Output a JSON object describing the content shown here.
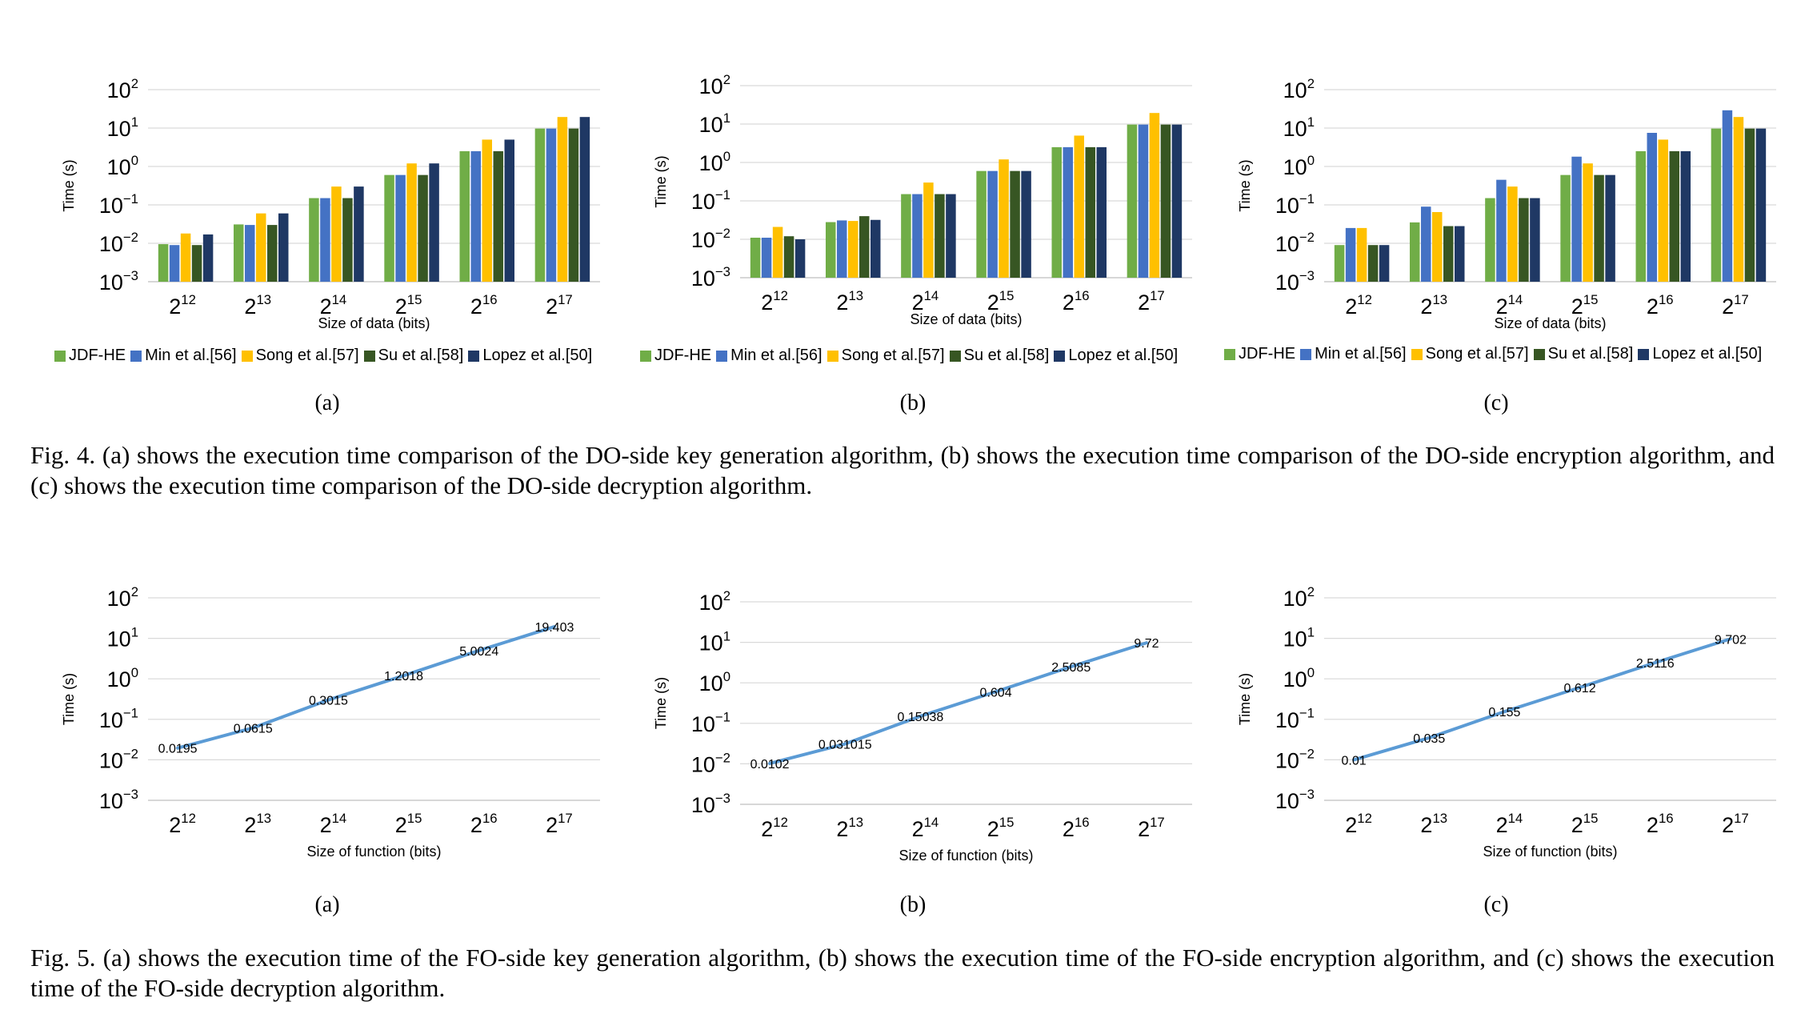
{
  "colors": {
    "JDF-HE": "#70ad47",
    "Min et al.[56]": "#4472c4",
    "Song et al.[57]": "#ffc000",
    "Su et al.[58]": "#375623",
    "Lopez et al.[50]": "#1f3864",
    "line": "#5b9bd5"
  },
  "fig4": {
    "caption": "Fig. 4.  (a) shows the execution time comparison of the DO-side key generation algorithm, (b) shows the execution time comparison of the DO-side encryption algorithm, and (c) shows the execution time comparison of the DO-side decryption algorithm.",
    "legend": [
      "JDF-HE",
      "Min et al.[56]",
      "Song et al.[57]",
      "Su et al.[58]",
      "Lopez et al.[50]"
    ]
  },
  "fig5": {
    "caption": "Fig. 5.  (a) shows the execution time of the FO-side key generation algorithm, (b) shows the execution time of the FO-side encryption algorithm, and (c) shows the execution time of the FO-side decryption algorithm."
  },
  "sublabels": [
    "(a)",
    "(b)",
    "(c)"
  ],
  "chart_data": [
    {
      "id": "fig4a",
      "type": "bar",
      "log_y": true,
      "ylim": [
        0.001,
        100
      ],
      "yticks": [
        0.001,
        0.01,
        0.1,
        1,
        10,
        100
      ],
      "ytick_labels": [
        [
          "10",
          "−3"
        ],
        [
          "10",
          "−2"
        ],
        [
          "10",
          "−1"
        ],
        [
          "10",
          "0"
        ],
        [
          "10",
          "1"
        ],
        [
          "10",
          "2"
        ]
      ],
      "categories": [
        [
          "2",
          "12"
        ],
        [
          "2",
          "13"
        ],
        [
          "2",
          "14"
        ],
        [
          "2",
          "15"
        ],
        [
          "2",
          "16"
        ],
        [
          "2",
          "17"
        ]
      ],
      "ylabel": "Time (s)",
      "xlabel": "Size of data (bits)",
      "grid": true,
      "series": [
        {
          "name": "JDF-HE",
          "values": [
            0.0095,
            0.031,
            0.15,
            0.6,
            2.5,
            9.7
          ]
        },
        {
          "name": "Min et al.[56]",
          "values": [
            0.009,
            0.03,
            0.15,
            0.6,
            2.5,
            9.7
          ]
        },
        {
          "name": "Song et al.[57]",
          "values": [
            0.018,
            0.06,
            0.3,
            1.2,
            5.0,
            19.4
          ]
        },
        {
          "name": "Su et al.[58]",
          "values": [
            0.009,
            0.03,
            0.15,
            0.6,
            2.5,
            9.7
          ]
        },
        {
          "name": "Lopez et al.[50]",
          "values": [
            0.017,
            0.06,
            0.3,
            1.2,
            5.0,
            19.4
          ]
        }
      ]
    },
    {
      "id": "fig4b",
      "type": "bar",
      "log_y": true,
      "ylim": [
        0.001,
        100
      ],
      "yticks": [
        0.001,
        0.01,
        0.1,
        1,
        10,
        100
      ],
      "ytick_labels": [
        [
          "10",
          "−3"
        ],
        [
          "10",
          "−2"
        ],
        [
          "10",
          "−1"
        ],
        [
          "10",
          "0"
        ],
        [
          "10",
          "1"
        ],
        [
          "10",
          "2"
        ]
      ],
      "categories": [
        [
          "2",
          "12"
        ],
        [
          "2",
          "13"
        ],
        [
          "2",
          "14"
        ],
        [
          "2",
          "15"
        ],
        [
          "2",
          "16"
        ],
        [
          "2",
          "17"
        ]
      ],
      "ylabel": "Time (s)",
      "xlabel": "Size of data (bits)",
      "grid": true,
      "series": [
        {
          "name": "JDF-HE",
          "values": [
            0.011,
            0.028,
            0.15,
            0.6,
            2.5,
            9.7
          ]
        },
        {
          "name": "Min et al.[56]",
          "values": [
            0.011,
            0.031,
            0.15,
            0.6,
            2.5,
            9.7
          ]
        },
        {
          "name": "Song et al.[57]",
          "values": [
            0.021,
            0.03,
            0.3,
            1.2,
            5.0,
            19.4
          ]
        },
        {
          "name": "Su et al.[58]",
          "values": [
            0.012,
            0.04,
            0.15,
            0.6,
            2.5,
            9.7
          ]
        },
        {
          "name": "Lopez et al.[50]",
          "values": [
            0.01,
            0.032,
            0.15,
            0.6,
            2.5,
            9.7
          ]
        }
      ]
    },
    {
      "id": "fig4c",
      "type": "bar",
      "log_y": true,
      "ylim": [
        0.001,
        100
      ],
      "yticks": [
        0.001,
        0.01,
        0.1,
        1,
        10,
        100
      ],
      "ytick_labels": [
        [
          "10",
          "−3"
        ],
        [
          "10",
          "−2"
        ],
        [
          "10",
          "−1"
        ],
        [
          "10",
          "0"
        ],
        [
          "10",
          "1"
        ],
        [
          "10",
          "2"
        ]
      ],
      "categories": [
        [
          "2",
          "12"
        ],
        [
          "2",
          "13"
        ],
        [
          "2",
          "14"
        ],
        [
          "2",
          "15"
        ],
        [
          "2",
          "16"
        ],
        [
          "2",
          "17"
        ]
      ],
      "ylabel": "Time (s)",
      "xlabel": "Size of data (bits)",
      "grid": true,
      "series": [
        {
          "name": "JDF-HE",
          "values": [
            0.009,
            0.035,
            0.15,
            0.6,
            2.5,
            9.7
          ]
        },
        {
          "name": "Min et al.[56]",
          "values": [
            0.025,
            0.09,
            0.45,
            1.8,
            7.5,
            29
          ]
        },
        {
          "name": "Song et al.[57]",
          "values": [
            0.025,
            0.065,
            0.3,
            1.2,
            5.0,
            19.4
          ]
        },
        {
          "name": "Su et al.[58]",
          "values": [
            0.009,
            0.028,
            0.15,
            0.6,
            2.5,
            9.7
          ]
        },
        {
          "name": "Lopez et al.[50]",
          "values": [
            0.009,
            0.028,
            0.15,
            0.6,
            2.5,
            9.7
          ]
        }
      ]
    },
    {
      "id": "fig5a",
      "type": "line",
      "log_y": true,
      "ylim": [
        0.001,
        100
      ],
      "yticks": [
        0.001,
        0.01,
        0.1,
        1,
        10,
        100
      ],
      "ytick_labels": [
        [
          "10",
          "−3"
        ],
        [
          "10",
          "−2"
        ],
        [
          "10",
          "−1"
        ],
        [
          "10",
          "0"
        ],
        [
          "10",
          "1"
        ],
        [
          "10",
          "2"
        ]
      ],
      "categories": [
        [
          "2",
          "12"
        ],
        [
          "2",
          "13"
        ],
        [
          "2",
          "14"
        ],
        [
          "2",
          "15"
        ],
        [
          "2",
          "16"
        ],
        [
          "2",
          "17"
        ]
      ],
      "ylabel": "Time (s)",
      "xlabel": "Size of function (bits)",
      "grid": true,
      "values": [
        0.0195,
        0.0615,
        0.3015,
        1.2018,
        5.0024,
        19.403
      ],
      "data_labels": [
        "0.0195",
        "0.0615",
        "0.3015",
        "1.2018",
        "5.0024",
        "19.403"
      ]
    },
    {
      "id": "fig5b",
      "type": "line",
      "log_y": true,
      "ylim": [
        0.001,
        100
      ],
      "yticks": [
        0.001,
        0.01,
        0.1,
        1,
        10,
        100
      ],
      "ytick_labels": [
        [
          "10",
          "−3"
        ],
        [
          "10",
          "−2"
        ],
        [
          "10",
          "−1"
        ],
        [
          "10",
          "0"
        ],
        [
          "10",
          "1"
        ],
        [
          "10",
          "2"
        ]
      ],
      "categories": [
        [
          "2",
          "12"
        ],
        [
          "2",
          "13"
        ],
        [
          "2",
          "14"
        ],
        [
          "2",
          "15"
        ],
        [
          "2",
          "16"
        ],
        [
          "2",
          "17"
        ]
      ],
      "ylabel": "Time (s)",
      "xlabel": "Size of function (bits)",
      "grid": true,
      "values": [
        0.0102,
        0.031015,
        0.15038,
        0.604,
        2.5085,
        9.72
      ],
      "data_labels": [
        "0.0102",
        "0.031015",
        "0.15038",
        "0.604",
        "2.5085",
        "9.72"
      ]
    },
    {
      "id": "fig5c",
      "type": "line",
      "log_y": true,
      "ylim": [
        0.001,
        100
      ],
      "yticks": [
        0.001,
        0.01,
        0.1,
        1,
        10,
        100
      ],
      "ytick_labels": [
        [
          "10",
          "−3"
        ],
        [
          "10",
          "−2"
        ],
        [
          "10",
          "−1"
        ],
        [
          "10",
          "0"
        ],
        [
          "10",
          "1"
        ],
        [
          "10",
          "2"
        ]
      ],
      "categories": [
        [
          "2",
          "12"
        ],
        [
          "2",
          "13"
        ],
        [
          "2",
          "14"
        ],
        [
          "2",
          "15"
        ],
        [
          "2",
          "16"
        ],
        [
          "2",
          "17"
        ]
      ],
      "ylabel": "Time (s)",
      "xlabel": "Size of function (bits)",
      "grid": true,
      "values": [
        0.01,
        0.035,
        0.155,
        0.612,
        2.5116,
        9.702
      ],
      "data_labels": [
        "0.01",
        "0.035",
        "0.155",
        "0.612",
        "2.5116",
        "9.702"
      ]
    }
  ]
}
